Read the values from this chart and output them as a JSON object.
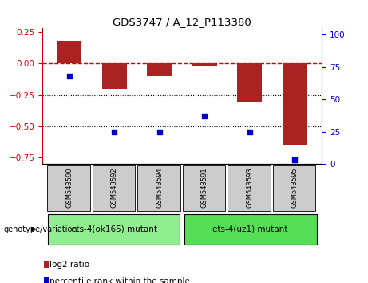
{
  "title": "GDS3747 / A_12_P113380",
  "categories": [
    "GSM543590",
    "GSM543592",
    "GSM543594",
    "GSM543591",
    "GSM543593",
    "GSM543595"
  ],
  "log2_ratio": [
    0.18,
    -0.2,
    -0.1,
    -0.02,
    -0.3,
    -0.65
  ],
  "percentile_rank": [
    68,
    25,
    25,
    37,
    25,
    3
  ],
  "group1_label": "ets-4(ok165) mutant",
  "group2_label": "ets-4(uz1) mutant",
  "group1_indices": [
    0,
    1,
    2
  ],
  "group2_indices": [
    3,
    4,
    5
  ],
  "bar_color": "#aa2222",
  "dot_color": "#0000cc",
  "ylim_left": [
    -0.8,
    0.28
  ],
  "ylim_right": [
    0,
    105
  ],
  "yticks_left": [
    0.25,
    0,
    -0.25,
    -0.5,
    -0.75
  ],
  "yticks_right": [
    100,
    75,
    50,
    25,
    0
  ],
  "legend_bar_label": "log2 ratio",
  "legend_dot_label": "percentile rank within the sample",
  "genotype_label": "genotype/variation",
  "group1_color": "#90ee90",
  "group2_color": "#55dd55",
  "header_color": "#cccccc",
  "hline0_color": "#cc0000",
  "hline_dotted_color": "#000000"
}
